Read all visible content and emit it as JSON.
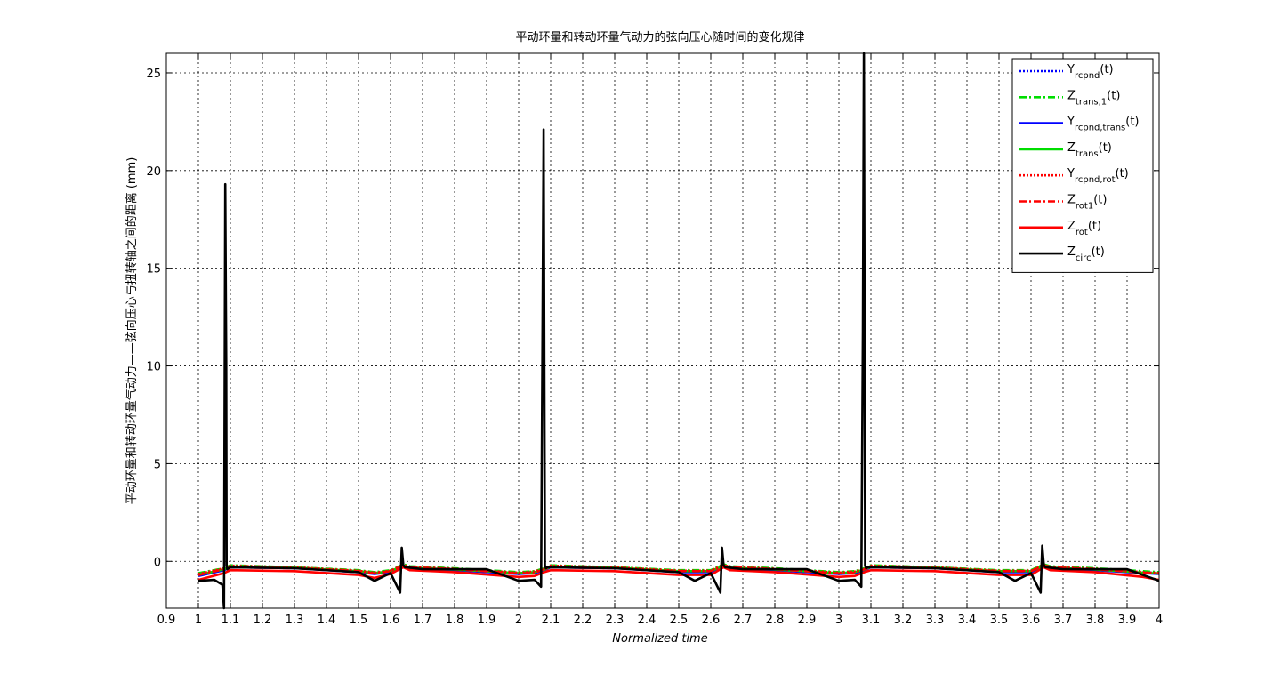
{
  "chart_data": {
    "type": "line",
    "title": "平动环量和转动环量气动力的弦向压心随时间的变化规律",
    "xlabel": "Normalized time",
    "ylabel": "平动环量和转动环量气动力——弦向压心与扭转轴之间的距离 (mm)",
    "xlim": [
      0.9,
      4.0
    ],
    "ylim": [
      -2.4,
      26
    ],
    "xticks": [
      "0.9",
      "1",
      "1.1",
      "1.2",
      "1.3",
      "1.4",
      "1.5",
      "1.6",
      "1.7",
      "1.8",
      "1.9",
      "2",
      "2.1",
      "2.2",
      "2.3",
      "2.4",
      "2.5",
      "2.6",
      "2.7",
      "2.8",
      "2.9",
      "3",
      "3.1",
      "3.2",
      "3.3",
      "3.4",
      "3.5",
      "3.6",
      "3.7",
      "3.8",
      "3.9",
      "4"
    ],
    "yticks": [
      "0",
      "5",
      "10",
      "15",
      "20",
      "25"
    ],
    "grid": true,
    "legend_position": "top-right",
    "series": [
      {
        "name": "Yrcpnd(t)",
        "label_main": "Y",
        "label_sub": "rcpnd",
        "label_tail": "(t)",
        "color": "#0000ff",
        "style": "dotted",
        "x": [
          1.0,
          1.08,
          1.1,
          1.3,
          1.5,
          1.55,
          1.6,
          1.64,
          1.66,
          1.8,
          2.0,
          2.05,
          2.08,
          2.1,
          2.3,
          2.5,
          2.6,
          2.64,
          2.66,
          2.8,
          3.0,
          3.05,
          3.08,
          3.1,
          3.3,
          3.5,
          3.6,
          3.64,
          3.66,
          3.8,
          3.95,
          4.0
        ],
        "y": [
          -0.7,
          -0.4,
          -0.25,
          -0.3,
          -0.5,
          -0.6,
          -0.5,
          -0.2,
          -0.3,
          -0.4,
          -0.6,
          -0.55,
          -0.4,
          -0.25,
          -0.3,
          -0.5,
          -0.5,
          -0.2,
          -0.3,
          -0.4,
          -0.6,
          -0.55,
          -0.4,
          -0.25,
          -0.3,
          -0.5,
          -0.5,
          -0.2,
          -0.3,
          -0.4,
          -0.55,
          -0.6
        ]
      },
      {
        "name": "Ztrans,1(t)",
        "label_main": "Z",
        "label_sub": "trans,1",
        "label_tail": "(t)",
        "color": "#00dd00",
        "style": "dashdot",
        "x": [
          1.0,
          1.08,
          1.1,
          1.3,
          1.5,
          1.55,
          1.6,
          1.64,
          1.66,
          1.8,
          2.0,
          2.05,
          2.08,
          2.1,
          2.3,
          2.5,
          2.6,
          2.64,
          2.66,
          2.8,
          3.0,
          3.05,
          3.08,
          3.1,
          3.3,
          3.5,
          3.6,
          3.64,
          3.66,
          3.8,
          3.95,
          4.0
        ],
        "y": [
          -0.6,
          -0.35,
          -0.2,
          -0.3,
          -0.45,
          -0.55,
          -0.45,
          -0.15,
          -0.25,
          -0.35,
          -0.55,
          -0.5,
          -0.35,
          -0.2,
          -0.3,
          -0.45,
          -0.45,
          -0.15,
          -0.25,
          -0.35,
          -0.55,
          -0.5,
          -0.35,
          -0.2,
          -0.3,
          -0.45,
          -0.45,
          -0.15,
          -0.25,
          -0.35,
          -0.5,
          -0.55
        ]
      },
      {
        "name": "Yrcpnd,trans(t)",
        "label_main": "Y",
        "label_sub": "rcpnd,trans",
        "label_tail": "(t)",
        "color": "#0000ff",
        "style": "solid",
        "x": [
          1.0,
          1.08,
          1.1,
          1.3,
          1.5,
          1.55,
          1.6,
          1.64,
          1.66,
          1.8,
          2.0,
          2.05,
          2.08,
          2.1,
          2.3,
          2.5,
          2.6,
          2.64,
          2.66,
          2.8,
          3.0,
          3.05,
          3.08,
          3.1,
          3.3,
          3.5,
          3.6,
          3.64,
          3.66,
          3.8,
          3.95,
          4.0
        ],
        "y": [
          -0.75,
          -0.45,
          -0.3,
          -0.35,
          -0.55,
          -0.65,
          -0.55,
          -0.25,
          -0.35,
          -0.45,
          -0.65,
          -0.6,
          -0.45,
          -0.3,
          -0.35,
          -0.55,
          -0.55,
          -0.25,
          -0.35,
          -0.45,
          -0.65,
          -0.6,
          -0.45,
          -0.3,
          -0.35,
          -0.55,
          -0.55,
          -0.25,
          -0.35,
          -0.45,
          -0.6,
          -0.65
        ]
      },
      {
        "name": "Ztrans(t)",
        "label_main": "Z",
        "label_sub": "trans",
        "label_tail": "(t)",
        "color": "#00dd00",
        "style": "solid",
        "x": [
          1.0,
          1.08,
          1.1,
          1.3,
          1.5,
          1.55,
          1.6,
          1.64,
          1.66,
          1.8,
          2.0,
          2.05,
          2.08,
          2.1,
          2.3,
          2.5,
          2.6,
          2.64,
          2.66,
          2.8,
          3.0,
          3.05,
          3.08,
          3.1,
          3.3,
          3.5,
          3.6,
          3.64,
          3.66,
          3.8,
          3.95,
          4.0
        ],
        "y": [
          -0.7,
          -0.4,
          -0.28,
          -0.32,
          -0.5,
          -0.6,
          -0.5,
          -0.22,
          -0.32,
          -0.42,
          -0.6,
          -0.55,
          -0.42,
          -0.28,
          -0.32,
          -0.5,
          -0.5,
          -0.22,
          -0.32,
          -0.42,
          -0.6,
          -0.55,
          -0.42,
          -0.28,
          -0.32,
          -0.5,
          -0.5,
          -0.22,
          -0.32,
          -0.42,
          -0.58,
          -0.62
        ]
      },
      {
        "name": "Yrcpnd,rot(t)",
        "label_main": "Y",
        "label_sub": "rcpnd,rot",
        "label_tail": "(t)",
        "color": "#ff0000",
        "style": "dotted",
        "x": [
          1.0,
          1.08,
          1.1,
          1.3,
          1.5,
          1.55,
          1.6,
          1.64,
          1.66,
          1.8,
          2.0,
          2.05,
          2.08,
          2.1,
          2.3,
          2.5,
          2.6,
          2.64,
          2.66,
          2.8,
          3.0,
          3.05,
          3.08,
          3.1,
          3.3,
          3.5,
          3.6,
          3.64,
          3.66,
          3.8,
          3.95,
          4.0
        ],
        "y": [
          -0.65,
          -0.35,
          -0.22,
          -0.3,
          -0.48,
          -0.58,
          -0.48,
          -0.18,
          -0.28,
          -0.38,
          -0.58,
          -0.52,
          -0.38,
          -0.22,
          -0.3,
          -0.48,
          -0.48,
          -0.18,
          -0.28,
          -0.38,
          -0.58,
          -0.52,
          -0.38,
          -0.22,
          -0.3,
          -0.48,
          -0.48,
          -0.18,
          -0.28,
          -0.38,
          -0.55,
          -0.6
        ]
      },
      {
        "name": "Zrot1(t)",
        "label_main": "Z",
        "label_sub": "rot1",
        "label_tail": "(t)",
        "color": "#ff0000",
        "style": "dashdot",
        "x": [
          1.0,
          1.08,
          1.1,
          1.3,
          1.5,
          1.55,
          1.6,
          1.64,
          1.66,
          1.8,
          2.0,
          2.05,
          2.08,
          2.1,
          2.3,
          2.5,
          2.6,
          2.64,
          2.66,
          2.8,
          3.0,
          3.05,
          3.08,
          3.1,
          3.3,
          3.5,
          3.6,
          3.64,
          3.66,
          3.8,
          3.95,
          4.0
        ],
        "y": [
          -0.7,
          -0.4,
          -0.3,
          -0.35,
          -0.5,
          -0.62,
          -0.5,
          -0.2,
          -0.3,
          -0.4,
          -0.62,
          -0.58,
          -0.4,
          -0.3,
          -0.35,
          -0.5,
          -0.5,
          -0.2,
          -0.3,
          -0.4,
          -0.62,
          -0.58,
          -0.4,
          -0.3,
          -0.35,
          -0.5,
          -0.5,
          -0.2,
          -0.3,
          -0.4,
          -0.58,
          -0.62
        ]
      },
      {
        "name": "Zrot(t)",
        "label_main": "Z",
        "label_sub": "rot",
        "label_tail": "(t)",
        "color": "#ff0000",
        "style": "solid",
        "x": [
          1.0,
          1.08,
          1.1,
          1.3,
          1.5,
          1.55,
          1.6,
          1.64,
          1.66,
          1.8,
          2.0,
          2.05,
          2.08,
          2.1,
          2.3,
          2.5,
          2.6,
          2.64,
          2.66,
          2.8,
          3.0,
          3.05,
          3.08,
          3.1,
          3.3,
          3.5,
          3.6,
          3.64,
          3.66,
          3.8,
          3.95,
          4.0
        ],
        "y": [
          -0.95,
          -0.6,
          -0.45,
          -0.5,
          -0.7,
          -0.85,
          -0.65,
          -0.3,
          -0.45,
          -0.55,
          -0.8,
          -0.75,
          -0.55,
          -0.45,
          -0.5,
          -0.7,
          -0.7,
          -0.3,
          -0.45,
          -0.55,
          -0.8,
          -0.75,
          -0.55,
          -0.45,
          -0.5,
          -0.7,
          -0.7,
          -0.3,
          -0.45,
          -0.55,
          -0.8,
          -0.95
        ]
      },
      {
        "name": "Zcirc(t)",
        "label_main": "Z",
        "label_sub": "circ",
        "label_tail": "(t)",
        "color": "#000000",
        "style": "solid",
        "x": [
          1.0,
          1.05,
          1.075,
          1.08,
          1.082,
          1.084,
          1.087,
          1.088,
          1.09,
          1.095,
          1.1,
          1.3,
          1.5,
          1.55,
          1.6,
          1.63,
          1.635,
          1.64,
          1.645,
          1.65,
          1.7,
          1.9,
          2.0,
          2.05,
          2.07,
          2.074,
          2.078,
          2.08,
          2.082,
          2.085,
          2.09,
          2.1,
          2.3,
          2.5,
          2.55,
          2.6,
          2.63,
          2.635,
          2.64,
          2.645,
          2.65,
          2.7,
          2.9,
          3.0,
          3.05,
          3.07,
          3.075,
          3.078,
          3.08,
          3.082,
          3.085,
          3.09,
          3.1,
          3.3,
          3.5,
          3.55,
          3.6,
          3.63,
          3.635,
          3.64,
          3.645,
          3.65,
          3.7,
          3.9,
          4.0
        ],
        "y": [
          -1.0,
          -0.95,
          -1.2,
          -2.4,
          8.5,
          19.3,
          10.0,
          -0.2,
          -0.4,
          -0.35,
          -0.3,
          -0.35,
          -0.55,
          -1.0,
          -0.6,
          -1.6,
          0.7,
          -0.2,
          -0.3,
          -0.3,
          -0.4,
          -0.4,
          -1.0,
          -0.95,
          -1.3,
          9.8,
          22.1,
          11.5,
          -0.2,
          -0.35,
          -0.3,
          -0.3,
          -0.35,
          -0.55,
          -1.0,
          -0.6,
          -1.6,
          0.7,
          -0.2,
          -0.3,
          -0.3,
          -0.4,
          -0.4,
          -1.0,
          -0.95,
          -1.3,
          11.8,
          26.0,
          13.5,
          -0.2,
          -0.35,
          -0.3,
          -0.3,
          -0.35,
          -0.55,
          -1.0,
          -0.6,
          -1.6,
          0.8,
          -0.2,
          -0.3,
          -0.3,
          -0.4,
          -0.4,
          -1.0
        ]
      }
    ]
  }
}
